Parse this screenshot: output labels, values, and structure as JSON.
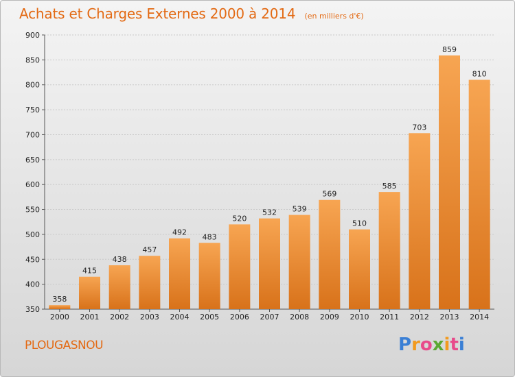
{
  "header": {
    "title": "Achats et Charges Externes 2000 à 2014",
    "subtitle": "(en milliers d'€)"
  },
  "footer": {
    "commune": "PLOUGASNOU",
    "logo_letters": [
      "P",
      "r",
      "o",
      "x",
      "i",
      "t",
      "i"
    ],
    "logo_colors": [
      "#3a7fd5",
      "#f29a1e",
      "#e84a8a",
      "#5aa832",
      "#f29a1e",
      "#e84a8a",
      "#3a7fd5"
    ]
  },
  "chart_data": {
    "type": "bar",
    "title": "Achats et Charges Externes 2000 à 2014",
    "subtitle": "(en milliers d'€)",
    "xlabel": "",
    "ylabel": "",
    "categories": [
      "2000",
      "2001",
      "2002",
      "2003",
      "2004",
      "2005",
      "2006",
      "2007",
      "2008",
      "2009",
      "2010",
      "2011",
      "2012",
      "2013",
      "2014"
    ],
    "values": [
      358,
      415,
      438,
      457,
      492,
      483,
      520,
      532,
      539,
      569,
      510,
      585,
      703,
      859,
      810
    ],
    "ylim": [
      350,
      900
    ],
    "yticks": [
      350,
      400,
      450,
      500,
      550,
      600,
      650,
      700,
      750,
      800,
      850,
      900
    ],
    "grid": true,
    "bar_color_top": "#f7a552",
    "bar_color_bottom": "#d8721a"
  }
}
